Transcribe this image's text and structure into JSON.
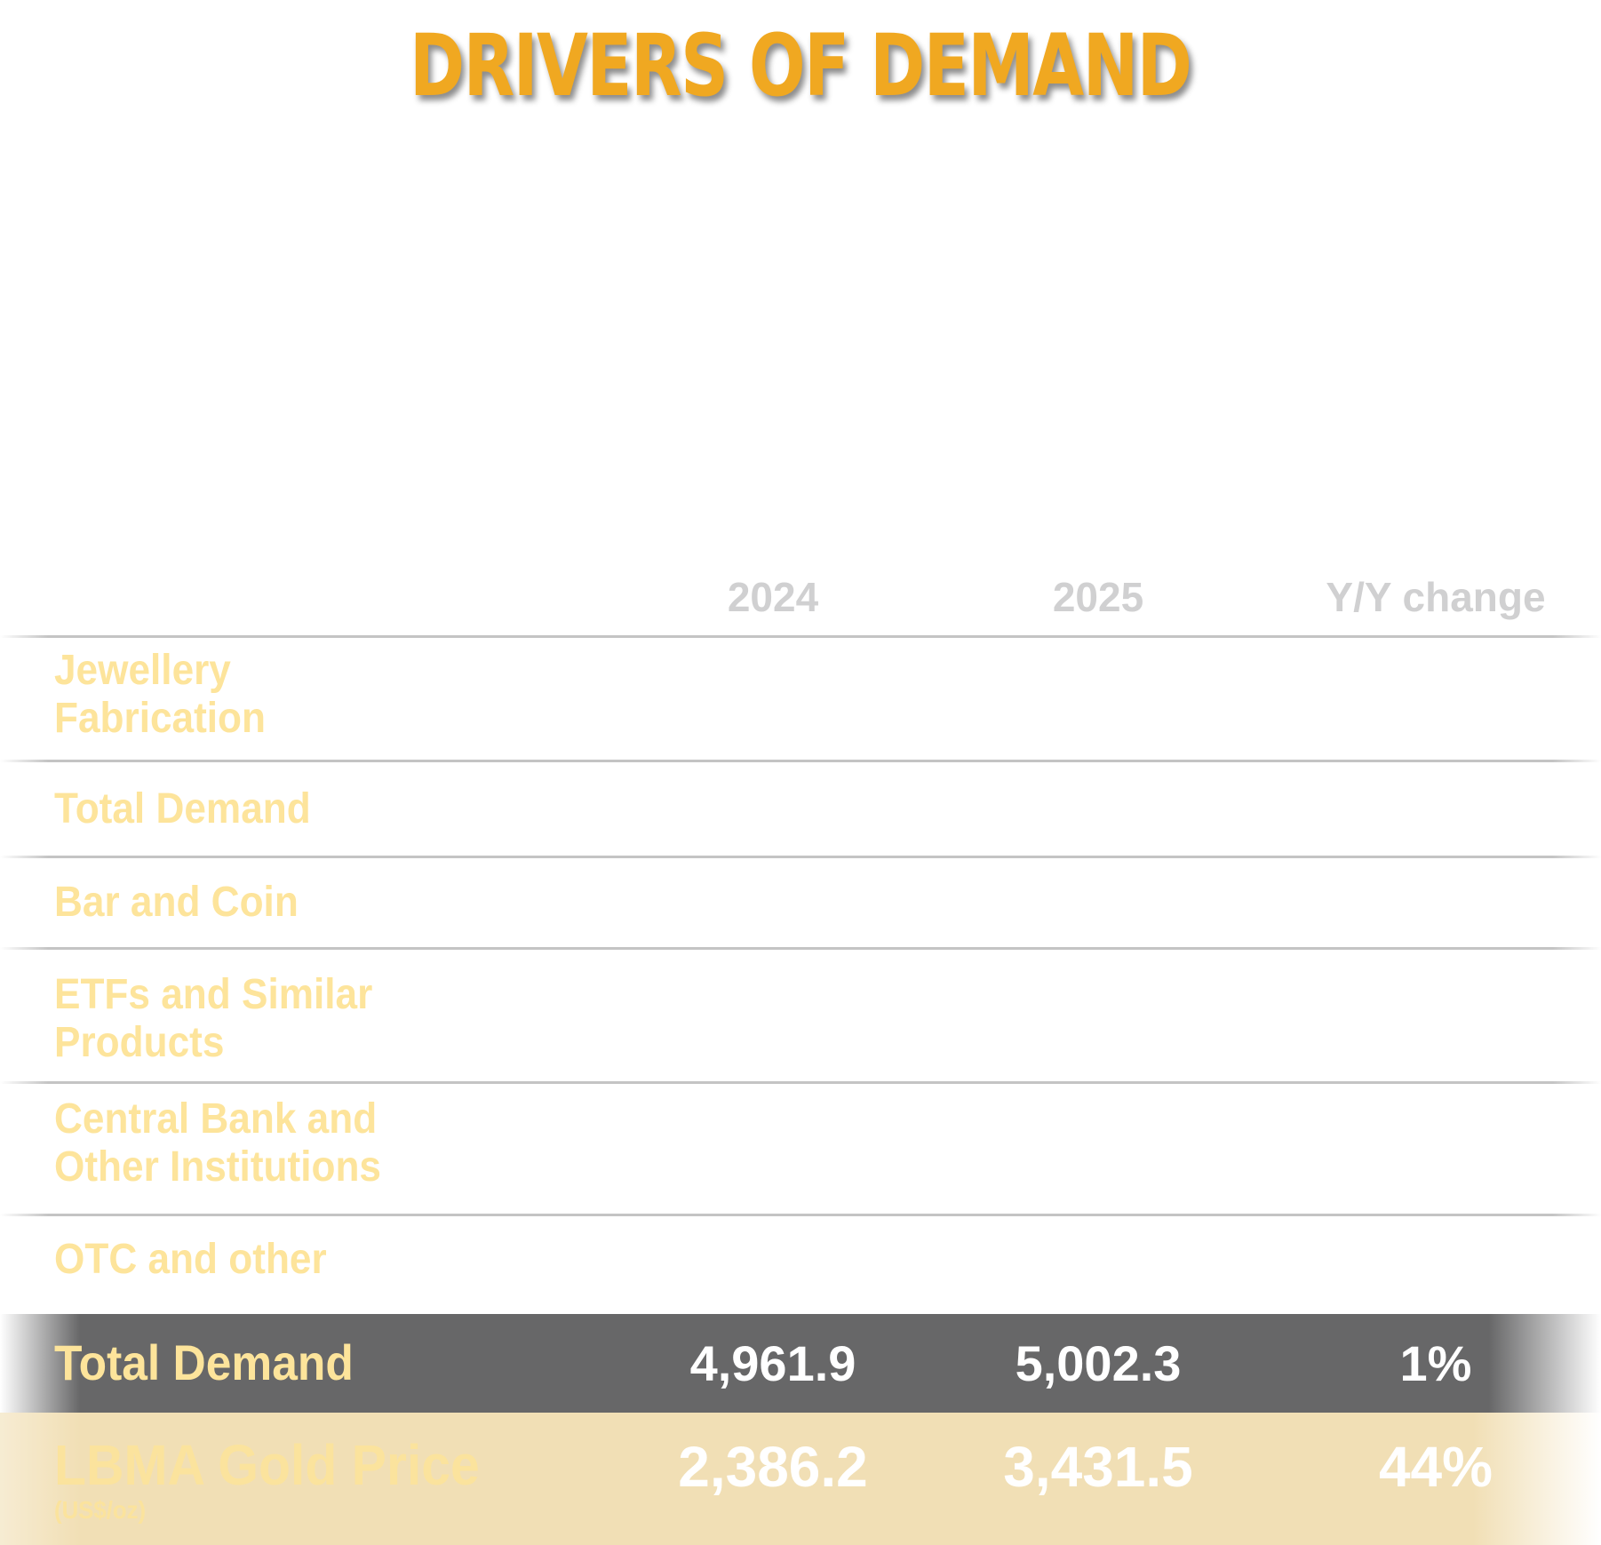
{
  "title": "DRIVERS OF DEMAND",
  "columns": [
    "2024",
    "2025",
    "Y/Y change"
  ],
  "rows": [
    {
      "label_lines": [
        "Jewellery",
        "Fabrication"
      ]
    },
    {
      "label_lines": [
        "Total Demand"
      ]
    },
    {
      "label_lines": [
        "Bar and Coin"
      ]
    },
    {
      "label_lines": [
        "ETFs and Similar",
        "Products"
      ]
    },
    {
      "label_lines": [
        "Central Bank and",
        "Other Institutions"
      ]
    },
    {
      "label_lines": [
        "OTC and other"
      ]
    }
  ],
  "total": {
    "label": "Total Demand",
    "v2024": "4,961.9",
    "v2025": "5,002.3",
    "change": "1%"
  },
  "price": {
    "label": "LBMA Gold Price",
    "unit": "(US$/oz)",
    "v2024": "2,386.2",
    "v2025": "3,431.5",
    "change": "44%"
  },
  "colors": {
    "title": "#f0a821",
    "label": "#fde49b",
    "header": "#d0d0d1",
    "total_band": "#676768",
    "price_band": "#f1dfb5"
  }
}
